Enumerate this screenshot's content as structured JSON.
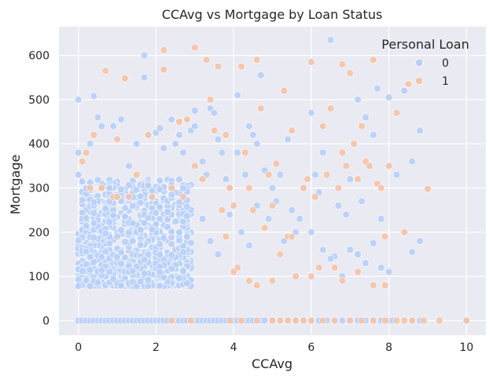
{
  "chart_data": {
    "type": "scatter",
    "title": "CCAvg vs Mortgage by Loan Status",
    "xlabel": "CCAvg",
    "ylabel": "Mortgage",
    "xlim": [
      -0.5,
      10.5
    ],
    "ylim": [
      -33,
      665
    ],
    "xticks": [
      0,
      2,
      4,
      6,
      8,
      10
    ],
    "yticks": [
      0,
      100,
      200,
      300,
      400,
      500,
      600
    ],
    "grid": true,
    "background": "#EAEAF2",
    "legend": {
      "title": "Personal Loan",
      "placement": "top-right"
    },
    "series": [
      {
        "name": "0",
        "color": "#B8CFF8",
        "points": [
          [
            0,
            0
          ],
          [
            0.1,
            0
          ],
          [
            0.2,
            0
          ],
          [
            0.3,
            0
          ],
          [
            0.4,
            0
          ],
          [
            0.5,
            0
          ],
          [
            0.6,
            0
          ],
          [
            0.7,
            0
          ],
          [
            0.8,
            0
          ],
          [
            0.9,
            0
          ],
          [
            1.0,
            0
          ],
          [
            1.1,
            0
          ],
          [
            1.2,
            0
          ],
          [
            1.3,
            0
          ],
          [
            1.4,
            0
          ],
          [
            1.5,
            0
          ],
          [
            1.6,
            0
          ],
          [
            1.7,
            0
          ],
          [
            1.8,
            0
          ],
          [
            1.9,
            0
          ],
          [
            2.0,
            0
          ],
          [
            2.1,
            0
          ],
          [
            2.2,
            0
          ],
          [
            2.3,
            0
          ],
          [
            2.4,
            0
          ],
          [
            2.5,
            0
          ],
          [
            2.6,
            0
          ],
          [
            2.7,
            0
          ],
          [
            2.8,
            0
          ],
          [
            2.9,
            0
          ],
          [
            3.0,
            0
          ],
          [
            3.1,
            0
          ],
          [
            3.2,
            0
          ],
          [
            3.3,
            0
          ],
          [
            3.4,
            0
          ],
          [
            3.5,
            0
          ],
          [
            3.6,
            0
          ],
          [
            3.7,
            0
          ],
          [
            3.8,
            0
          ],
          [
            3.9,
            0
          ],
          [
            4.0,
            0
          ],
          [
            4.1,
            0
          ],
          [
            4.2,
            0
          ],
          [
            4.3,
            0
          ],
          [
            4.4,
            0
          ],
          [
            4.5,
            0
          ],
          [
            4.7,
            0
          ],
          [
            4.8,
            0
          ],
          [
            5.0,
            0
          ],
          [
            5.2,
            0
          ],
          [
            5.4,
            0
          ],
          [
            5.6,
            0
          ],
          [
            5.8,
            0
          ],
          [
            6.0,
            0
          ],
          [
            6.2,
            0
          ],
          [
            6.4,
            0
          ],
          [
            6.6,
            0
          ],
          [
            6.8,
            0
          ],
          [
            7.0,
            0
          ],
          [
            7.2,
            0
          ],
          [
            7.4,
            0
          ],
          [
            7.6,
            0
          ],
          [
            7.8,
            0
          ],
          [
            8.0,
            0
          ],
          [
            8.1,
            0
          ],
          [
            8.6,
            0
          ],
          [
            8.8,
            0
          ],
          [
            10.0,
            0
          ],
          [
            0,
            500
          ],
          [
            0.4,
            508
          ],
          [
            0,
            380
          ],
          [
            0,
            330
          ],
          [
            0.5,
            460
          ],
          [
            0.6,
            440
          ],
          [
            0.3,
            400
          ],
          [
            0.9,
            440
          ],
          [
            1.1,
            455
          ],
          [
            1.3,
            350
          ],
          [
            1.5,
            400
          ],
          [
            1.7,
            600
          ],
          [
            1.7,
            550
          ],
          [
            1.8,
            420
          ],
          [
            2.0,
            425
          ],
          [
            2.1,
            435
          ],
          [
            2.2,
            390
          ],
          [
            2.4,
            455
          ],
          [
            2.5,
            400
          ],
          [
            2.6,
            420
          ],
          [
            2.7,
            380
          ],
          [
            2.9,
            430
          ],
          [
            3.0,
            475
          ],
          [
            3.0,
            440
          ],
          [
            3.2,
            360
          ],
          [
            3.3,
            330
          ],
          [
            3.4,
            480
          ],
          [
            3.5,
            470
          ],
          [
            3.6,
            410
          ],
          [
            3.7,
            380
          ],
          [
            3.8,
            320
          ],
          [
            3.9,
            300
          ],
          [
            4.1,
            510
          ],
          [
            4.1,
            380
          ],
          [
            4.3,
            330
          ],
          [
            4.4,
            440
          ],
          [
            4.5,
            420
          ],
          [
            4.6,
            400
          ],
          [
            4.7,
            555
          ],
          [
            4.8,
            340
          ],
          [
            5.0,
            300
          ],
          [
            5.2,
            330
          ],
          [
            5.4,
            410
          ],
          [
            5.6,
            200
          ],
          [
            5.8,
            300
          ],
          [
            6.0,
            470
          ],
          [
            6.1,
            330
          ],
          [
            6.2,
            290
          ],
          [
            6.3,
            380
          ],
          [
            6.5,
            635
          ],
          [
            6.7,
            260
          ],
          [
            6.9,
            240
          ],
          [
            7.0,
            320
          ],
          [
            7.2,
            500
          ],
          [
            7.3,
            270
          ],
          [
            7.4,
            460
          ],
          [
            7.6,
            420
          ],
          [
            7.7,
            525
          ],
          [
            7.8,
            230
          ],
          [
            8.0,
            505
          ],
          [
            8.2,
            330
          ],
          [
            8.4,
            520
          ],
          [
            8.6,
            360
          ],
          [
            8.8,
            430
          ],
          [
            6.6,
            145
          ],
          [
            6.8,
            100
          ],
          [
            7.0,
            160
          ],
          [
            7.2,
            150
          ],
          [
            7.4,
            130
          ],
          [
            7.6,
            175
          ],
          [
            7.8,
            120
          ],
          [
            8.0,
            110
          ],
          [
            8.6,
            155
          ],
          [
            8.8,
            180
          ],
          [
            5.5,
            250
          ],
          [
            5.7,
            230
          ],
          [
            6.0,
            200
          ],
          [
            6.3,
            160
          ],
          [
            6.5,
            140
          ],
          [
            4.9,
            230
          ],
          [
            5.1,
            270
          ],
          [
            5.3,
            180
          ],
          [
            4.2,
            200
          ],
          [
            4.4,
            170
          ],
          [
            4.6,
            260
          ],
          [
            3.9,
            240
          ],
          [
            3.6,
            150
          ],
          [
            3.4,
            180
          ],
          [
            3.2,
            230
          ]
        ],
        "dense_region": {
          "x_range": [
            0,
            2.9
          ],
          "y_range": [
            78,
            320
          ],
          "count": 900,
          "peak_y": 120
        }
      },
      {
        "name": "1",
        "color": "#F4C3A8",
        "points": [
          [
            0.1,
            360
          ],
          [
            0.2,
            380
          ],
          [
            0.4,
            420
          ],
          [
            0.6,
            300
          ],
          [
            0.7,
            565
          ],
          [
            0.9,
            280
          ],
          [
            1.0,
            410
          ],
          [
            1.2,
            548
          ],
          [
            1.3,
            280
          ],
          [
            1.5,
            330
          ],
          [
            1.8,
            420
          ],
          [
            2.2,
            612
          ],
          [
            2.2,
            568
          ],
          [
            2.4,
            300
          ],
          [
            2.6,
            450
          ],
          [
            2.8,
            455
          ],
          [
            3.0,
            618
          ],
          [
            3.0,
            350
          ],
          [
            3.2,
            320
          ],
          [
            3.3,
            590
          ],
          [
            3.4,
            500
          ],
          [
            3.5,
            430
          ],
          [
            3.6,
            575
          ],
          [
            3.7,
            250
          ],
          [
            3.8,
            420
          ],
          [
            3.9,
            300
          ],
          [
            4.0,
            260
          ],
          [
            4.1,
            120
          ],
          [
            4.2,
            575
          ],
          [
            4.3,
            380
          ],
          [
            4.4,
            300
          ],
          [
            4.5,
            250
          ],
          [
            4.6,
            590
          ],
          [
            4.7,
            480
          ],
          [
            4.8,
            210
          ],
          [
            4.9,
            330
          ],
          [
            5.0,
            260
          ],
          [
            5.1,
            355
          ],
          [
            5.2,
            150
          ],
          [
            5.3,
            520
          ],
          [
            5.4,
            190
          ],
          [
            5.5,
            430
          ],
          [
            5.6,
            100
          ],
          [
            5.8,
            300
          ],
          [
            5.9,
            320
          ],
          [
            6.0,
            585
          ],
          [
            6.1,
            280
          ],
          [
            6.2,
            120
          ],
          [
            6.3,
            440
          ],
          [
            6.4,
            330
          ],
          [
            6.5,
            480
          ],
          [
            6.6,
            120
          ],
          [
            6.7,
            300
          ],
          [
            6.8,
            580
          ],
          [
            6.8,
            380
          ],
          [
            6.9,
            350
          ],
          [
            7.0,
            560
          ],
          [
            7.1,
            400
          ],
          [
            7.2,
            320
          ],
          [
            7.3,
            440
          ],
          [
            7.4,
            360
          ],
          [
            7.5,
            350
          ],
          [
            7.6,
            590
          ],
          [
            7.7,
            310
          ],
          [
            7.8,
            300
          ],
          [
            7.9,
            190
          ],
          [
            8.0,
            350
          ],
          [
            8.2,
            470
          ],
          [
            8.4,
            200
          ],
          [
            8.5,
            535
          ],
          [
            8.8,
            585
          ],
          [
            9.0,
            298
          ],
          [
            4.4,
            90
          ],
          [
            4.6,
            80
          ],
          [
            5.0,
            90
          ],
          [
            5.5,
            190
          ],
          [
            6.0,
            100
          ],
          [
            6.8,
            90
          ],
          [
            7.2,
            110
          ],
          [
            7.6,
            80
          ],
          [
            7.9,
            80
          ],
          [
            4.0,
            110
          ],
          [
            3.8,
            190
          ],
          [
            2.7,
            280
          ],
          [
            1.9,
            280
          ],
          [
            1.0,
            280
          ],
          [
            0.3,
            300
          ],
          [
            4.6,
            0
          ],
          [
            5.0,
            0
          ],
          [
            5.2,
            0
          ],
          [
            5.4,
            0
          ],
          [
            5.6,
            0
          ],
          [
            5.8,
            0
          ],
          [
            6.0,
            0
          ],
          [
            6.3,
            0
          ],
          [
            6.6,
            0
          ],
          [
            7.0,
            0
          ],
          [
            7.3,
            0
          ],
          [
            7.6,
            0
          ],
          [
            7.9,
            0
          ],
          [
            8.2,
            0
          ],
          [
            8.4,
            0
          ],
          [
            8.6,
            0
          ],
          [
            8.9,
            0
          ],
          [
            9.3,
            0
          ],
          [
            10.0,
            0
          ],
          [
            3.9,
            0
          ],
          [
            4.2,
            0
          ],
          [
            2.9,
            0
          ],
          [
            2.4,
            0
          ]
        ]
      }
    ]
  }
}
